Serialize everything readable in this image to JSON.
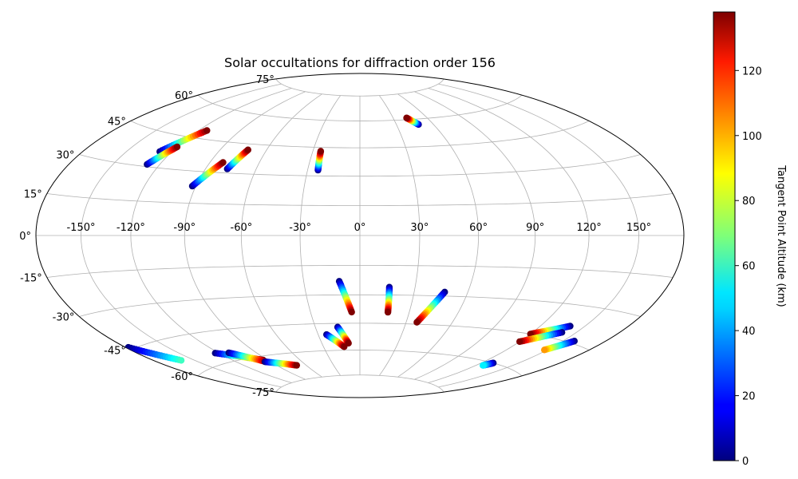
{
  "chart_data": {
    "type": "scatter",
    "title": "Solar occultations for diffraction order 156",
    "projection": "hammer",
    "grid": true,
    "lon_ticks": [
      {
        "value": -150,
        "label": "-150°"
      },
      {
        "value": -120,
        "label": "-120°"
      },
      {
        "value": -90,
        "label": "-90°"
      },
      {
        "value": -60,
        "label": "-60°"
      },
      {
        "value": -30,
        "label": "-30°"
      },
      {
        "value": 0,
        "label": "0°"
      },
      {
        "value": 30,
        "label": "30°"
      },
      {
        "value": 60,
        "label": "60°"
      },
      {
        "value": 90,
        "label": "90°"
      },
      {
        "value": 120,
        "label": "120°"
      },
      {
        "value": 150,
        "label": "150°"
      }
    ],
    "lat_ticks": [
      {
        "value": 75,
        "label": "75°"
      },
      {
        "value": 60,
        "label": "60°"
      },
      {
        "value": 45,
        "label": "45°"
      },
      {
        "value": 30,
        "label": "30°"
      },
      {
        "value": 15,
        "label": "15°"
      },
      {
        "value": 0,
        "label": "0°"
      },
      {
        "value": -15,
        "label": "-15°"
      },
      {
        "value": -30,
        "label": "-30°"
      },
      {
        "value": -45,
        "label": "-45°"
      },
      {
        "value": -60,
        "label": "-60°"
      },
      {
        "value": -75,
        "label": "-75°"
      }
    ],
    "colorbar": {
      "label": "Tangent Point Altitude (km)",
      "colormap": "jet",
      "min": 0,
      "max": 138,
      "ticks": [
        0,
        20,
        40,
        60,
        80,
        100,
        120
      ]
    },
    "series": [
      {
        "lon": [
          -128,
          -114
        ],
        "lat": [
          37,
          49
        ],
        "alt": [
          0,
          138
        ]
      },
      {
        "lon": [
          -128,
          -120
        ],
        "lat": [
          31,
          40
        ],
        "alt": [
          0,
          138
        ]
      },
      {
        "lon": [
          -92,
          -82
        ],
        "lat": [
          23,
          35
        ],
        "alt": [
          0,
          138
        ]
      },
      {
        "lon": [
          -77,
          -72
        ],
        "lat": [
          32,
          42
        ],
        "alt": [
          0,
          138
        ]
      },
      {
        "lon": [
          -24,
          -25
        ],
        "lat": [
          33,
          43
        ],
        "alt": [
          0,
          138
        ]
      },
      {
        "lon": [
          48,
          42
        ],
        "lat": [
          57,
          61
        ],
        "alt": [
          0,
          138
        ]
      },
      {
        "lon": [
          -11,
          -5
        ],
        "lat": [
          -23,
          -39
        ],
        "alt": [
          0,
          138
        ]
      },
      {
        "lon": [
          16,
          17
        ],
        "lat": [
          -26,
          -39
        ],
        "alt": [
          0,
          138
        ]
      },
      {
        "lon": [
          47,
          37
        ],
        "lat": [
          -28,
          -44
        ],
        "alt": [
          0,
          138
        ]
      },
      {
        "lon": [
          -178,
          -160
        ],
        "lat": [
          -44,
          -54
        ],
        "alt": [
          0,
          60
        ]
      },
      {
        "lon": [
          -123,
          -94
        ],
        "lat": [
          -55,
          -62
        ],
        "alt": [
          0,
          138
        ]
      },
      {
        "lon": [
          -112,
          -94
        ],
        "lat": [
          -56,
          -63
        ],
        "alt": [
          0,
          138
        ]
      },
      {
        "lon": [
          -95,
          -70
        ],
        "lat": [
          -63,
          -67
        ],
        "alt": [
          0,
          138
        ]
      },
      {
        "lon": [
          -24,
          -13
        ],
        "lat": [
          -51,
          -58
        ],
        "alt": [
          0,
          138
        ]
      },
      {
        "lon": [
          -15,
          -9
        ],
        "lat": [
          -47,
          -56
        ],
        "alt": [
          0,
          138
        ]
      },
      {
        "lon": [
          140,
          120
        ],
        "lat": [
          -39,
          -45
        ],
        "alt": [
          0,
          138
        ]
      },
      {
        "lon": [
          140,
          120
        ],
        "lat": [
          -42,
          -49
        ],
        "alt": [
          0,
          138
        ]
      },
      {
        "lon": [
          158,
          148
        ],
        "lat": [
          -44,
          -50
        ],
        "alt": [
          0,
          100
        ]
      },
      {
        "lon": [
          130,
          126
        ],
        "lat": [
          -60,
          -62
        ],
        "alt": [
          0,
          50
        ]
      }
    ]
  }
}
